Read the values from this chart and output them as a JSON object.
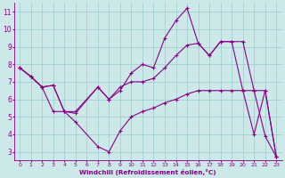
{
  "bg_color": "#cce8e8",
  "line_color": "#880088",
  "grid_color": "#99cccc",
  "xlabel": "Windchill (Refroidissement éolien,°C)",
  "xlabel_color": "#880088",
  "tick_color": "#880088",
  "xlim": [
    -0.5,
    23.5
  ],
  "ylim": [
    2.5,
    11.5
  ],
  "yticks": [
    3,
    4,
    5,
    6,
    7,
    8,
    9,
    10,
    11
  ],
  "xticks": [
    0,
    1,
    2,
    3,
    4,
    5,
    6,
    7,
    8,
    9,
    10,
    11,
    12,
    13,
    14,
    15,
    16,
    17,
    18,
    19,
    20,
    21,
    22,
    23
  ],
  "line1_x": [
    0,
    1,
    2,
    3,
    4,
    5,
    7,
    8,
    9,
    10,
    11,
    12,
    13,
    14,
    15,
    16,
    17,
    18,
    19,
    20,
    21,
    22,
    23
  ],
  "line1_y": [
    7.8,
    7.3,
    6.7,
    6.8,
    5.3,
    5.3,
    6.7,
    6.0,
    6.7,
    7.0,
    7.0,
    7.2,
    7.8,
    8.5,
    9.1,
    9.2,
    8.5,
    9.3,
    9.3,
    9.3,
    6.5,
    6.5,
    2.7
  ],
  "line2_x": [
    0,
    1,
    2,
    3,
    4,
    5,
    7,
    8,
    9,
    10,
    11,
    12,
    13,
    14,
    15,
    16,
    17,
    18,
    19,
    20,
    21,
    22,
    23
  ],
  "line2_y": [
    7.8,
    7.3,
    6.7,
    6.8,
    5.3,
    5.2,
    6.7,
    6.0,
    6.5,
    7.5,
    8.0,
    7.8,
    9.5,
    10.5,
    11.2,
    9.2,
    8.5,
    9.3,
    9.3,
    6.5,
    4.0,
    6.5,
    2.7
  ],
  "line3_x": [
    0,
    1,
    2,
    3,
    4,
    5,
    7,
    8,
    9,
    10,
    11,
    12,
    13,
    14,
    15,
    16,
    17,
    18,
    19,
    20,
    21,
    22,
    23
  ],
  "line3_y": [
    7.8,
    7.3,
    6.7,
    5.3,
    5.3,
    4.7,
    3.3,
    3.0,
    4.2,
    5.0,
    5.3,
    5.5,
    5.8,
    6.0,
    6.3,
    6.5,
    6.5,
    6.5,
    6.5,
    6.5,
    6.5,
    3.9,
    2.7
  ]
}
